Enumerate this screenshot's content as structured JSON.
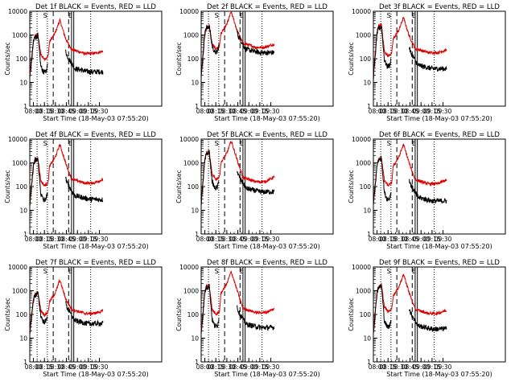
{
  "chart_data": [
    {
      "type": "line",
      "title": "Det 1f BLACK = Events, RED = LLD",
      "xlabel": "Start Time (18-May-03 07:55:20)",
      "ylabel": "Counts/sec",
      "yscale": "log",
      "ylim": [
        1,
        10000
      ],
      "x_ticks": [
        "08:00",
        "08:15",
        "08:30",
        "08:45",
        "09:00",
        "09:15",
        "09:30"
      ],
      "y_ticks": [
        "1",
        "10",
        "100",
        "1000",
        "10000"
      ],
      "markers": {
        "S": "08:16",
        "E": "08:47"
      },
      "lld": {
        "peak1": 1100,
        "base1": 95,
        "peak2": 4300,
        "tail": 165,
        "end": 210
      },
      "events": {
        "peak1": 1000,
        "base1": 25,
        "tail": 28,
        "end": 28
      }
    },
    {
      "type": "line",
      "title": "Det 2f BLACK = Events, RED = LLD",
      "xlabel": "Start Time (18-May-03 07:55:20)",
      "ylabel": "Counts/sec",
      "yscale": "log",
      "ylim": [
        1,
        10000
      ],
      "x_ticks": [
        "08:00",
        "08:15",
        "08:30",
        "08:45",
        "09:00",
        "09:15",
        "09:30"
      ],
      "y_ticks": [
        "1",
        "10",
        "100",
        "1000",
        "10000"
      ],
      "markers": {
        "S": "08:16",
        "E": "08:47"
      },
      "lld": {
        "peak1": 2500,
        "base1": 260,
        "peak2": 9500,
        "tail": 300,
        "end": 420
      },
      "events": {
        "peak1": 2400,
        "base1": 170,
        "tail": 180,
        "end": 180
      }
    },
    {
      "type": "line",
      "title": "Det 3f BLACK = Events, RED = LLD",
      "xlabel": "Start Time (18-May-03 07:55:20)",
      "ylabel": "Counts/sec",
      "yscale": "log",
      "ylim": [
        1,
        10000
      ],
      "x_ticks": [
        "08:00",
        "08:15",
        "08:30",
        "08:45",
        "09:00",
        "09:15",
        "09:30"
      ],
      "y_ticks": [
        "1",
        "10",
        "100",
        "1000",
        "10000"
      ],
      "markers": {
        "S": "08:16",
        "E": "08:47"
      },
      "lld": {
        "peak1": 2800,
        "base1": 130,
        "peak2": 5500,
        "tail": 180,
        "end": 230
      },
      "events": {
        "peak1": 2300,
        "base1": 45,
        "tail": 38,
        "end": 38
      }
    },
    {
      "type": "line",
      "title": "Det 4f BLACK = Events, RED = LLD",
      "xlabel": "Start Time (18-May-03 07:55:20)",
      "ylabel": "Counts/sec",
      "yscale": "log",
      "ylim": [
        1,
        10000
      ],
      "x_ticks": [
        "08:00",
        "08:15",
        "08:30",
        "08:45",
        "09:00",
        "09:15",
        "09:30"
      ],
      "y_ticks": [
        "1",
        "10",
        "100",
        "1000",
        "10000"
      ],
      "markers": {
        "S": "08:16",
        "E": "08:47"
      },
      "lld": {
        "peak1": 1700,
        "base1": 110,
        "peak2": 6000,
        "tail": 140,
        "end": 200
      },
      "events": {
        "peak1": 1500,
        "base1": 25,
        "tail": 30,
        "end": 28
      }
    },
    {
      "type": "line",
      "title": "Det 5f BLACK = Events, RED = LLD",
      "xlabel": "Start Time (18-May-03 07:55:20)",
      "ylabel": "Counts/sec",
      "yscale": "log",
      "ylim": [
        1,
        10000
      ],
      "x_ticks": [
        "08:00",
        "08:15",
        "08:30",
        "08:45",
        "09:00",
        "09:15",
        "09:30"
      ],
      "y_ticks": [
        "1",
        "10",
        "100",
        "1000",
        "10000"
      ],
      "markers": {
        "S": "08:16",
        "E": "08:47"
      },
      "lld": {
        "peak1": 3000,
        "base1": 200,
        "peak2": 8500,
        "tail": 160,
        "end": 260
      },
      "events": {
        "peak1": 2900,
        "base1": 80,
        "tail": 60,
        "end": 60
      }
    },
    {
      "type": "line",
      "title": "Det 6f BLACK = Events, RED = LLD",
      "xlabel": "Start Time (18-May-03 07:55:20)",
      "ylabel": "Counts/sec",
      "yscale": "log",
      "ylim": [
        1,
        10000
      ],
      "x_ticks": [
        "08:00",
        "08:15",
        "08:30",
        "08:45",
        "09:00",
        "09:15",
        "09:30"
      ],
      "y_ticks": [
        "1",
        "10",
        "100",
        "1000",
        "10000"
      ],
      "markers": {
        "S": "08:16",
        "E": "08:47"
      },
      "lld": {
        "peak1": 1700,
        "base1": 110,
        "peak2": 6000,
        "tail": 130,
        "end": 190
      },
      "events": {
        "peak1": 1600,
        "base1": 28,
        "tail": 25,
        "end": 25
      }
    },
    {
      "type": "line",
      "title": "Det 7f BLACK = Events, RED = LLD",
      "xlabel": "Start Time (18-May-03 07:55:20)",
      "ylabel": "Counts/sec",
      "yscale": "log",
      "ylim": [
        1,
        10000
      ],
      "x_ticks": [
        "08:00",
        "08:15",
        "08:30",
        "08:45",
        "09:00",
        "09:15",
        "09:30"
      ],
      "y_ticks": [
        "1",
        "10",
        "100",
        "1000",
        "10000"
      ],
      "markers": {
        "S": "08:16",
        "E": "08:47"
      },
      "lld": {
        "peak1": 900,
        "base1": 95,
        "peak2": 2800,
        "tail": 110,
        "end": 140
      },
      "events": {
        "peak1": 800,
        "base1": 45,
        "tail": 40,
        "end": 42
      }
    },
    {
      "type": "line",
      "title": "Det 8f BLACK = Events, RED = LLD",
      "xlabel": "Start Time (18-May-03 07:55:20)",
      "ylabel": "Counts/sec",
      "yscale": "log",
      "ylim": [
        1,
        10000
      ],
      "x_ticks": [
        "08:00",
        "08:15",
        "08:30",
        "08:45",
        "09:00",
        "09:15",
        "09:30"
      ],
      "y_ticks": [
        "1",
        "10",
        "100",
        "1000",
        "10000"
      ],
      "markers": {
        "S": "08:16",
        "E": "08:47"
      },
      "lld": {
        "peak1": 1800,
        "base1": 100,
        "peak2": 6500,
        "tail": 120,
        "end": 170
      },
      "events": {
        "peak1": 1700,
        "base1": 30,
        "tail": 28,
        "end": 28
      }
    },
    {
      "type": "line",
      "title": "Det 9f BLACK = Events, RED = LLD",
      "xlabel": "Start Time (18-May-03 07:55:20)",
      "ylabel": "Counts/sec",
      "yscale": "log",
      "ylim": [
        1,
        10000
      ],
      "x_ticks": [
        "08:00",
        "08:15",
        "08:30",
        "08:45",
        "09:00",
        "09:15",
        "09:30"
      ],
      "y_ticks": [
        "1",
        "10",
        "100",
        "1000",
        "10000"
      ],
      "markers": {
        "S": "08:16",
        "E": "08:47"
      },
      "lld": {
        "peak1": 1800,
        "base1": 130,
        "peak2": 5000,
        "tail": 110,
        "end": 150
      },
      "events": {
        "peak1": 1700,
        "base1": 28,
        "tail": 24,
        "end": 25
      }
    }
  ],
  "colors": {
    "events": "#000000",
    "lld": "#dd0000",
    "background": "#ffffff",
    "axis": "#000000"
  },
  "x_domain_minutes": [
    -5,
    35,
    175
  ],
  "vertical_lines": [
    {
      "time": "08:05",
      "style": "dotted"
    },
    {
      "time": "08:19",
      "style": "dotted"
    },
    {
      "time": "08:27",
      "style": "dashed"
    },
    {
      "time": "08:48",
      "style": "dashed"
    },
    {
      "time": "08:52",
      "style": "solid"
    },
    {
      "time": "08:55",
      "style": "solid"
    },
    {
      "time": "09:18",
      "style": "dotted"
    }
  ]
}
